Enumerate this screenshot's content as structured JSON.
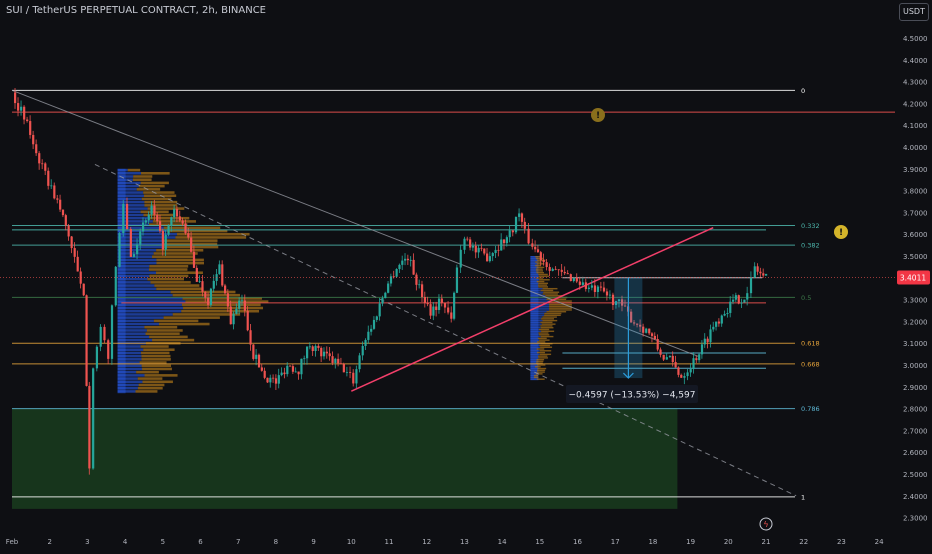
{
  "header": {
    "title": "SUI / TetherUS PERPETUAL CONTRACT, 2h, BINANCE",
    "currency": "USDT"
  },
  "last_price_label": "3.4011",
  "measure_label": "−0.4597 (−13.53%) −4,597",
  "colors": {
    "background": "#0e0f13",
    "up": "#26a69a",
    "down": "#ef5350",
    "trendline": "#f23f6a",
    "volume_profile": "#2962ff",
    "volume_profile_orange": "#d9921c",
    "green_zone": "#183a1e",
    "measure": "#2b9bd9",
    "fib_0": "#ffffff",
    "fib_0382": "#4db6ac",
    "fib_0618": "#e5a33b",
    "fib_0786": "#5fbad7"
  },
  "fib_levels": [
    {
      "label": "0",
      "value": 4.26
    },
    {
      "label": "0.332",
      "value": 3.64
    },
    {
      "label": "0.382",
      "value": 3.55
    },
    {
      "label": "0.5",
      "value": 3.31
    },
    {
      "label": "0.618",
      "value": 3.1
    },
    {
      "label": "0.668",
      "value": 3.005
    },
    {
      "label": "0.786",
      "value": 2.8
    },
    {
      "label": "1",
      "value": 2.395
    }
  ],
  "chart_data": {
    "type": "candlestick",
    "title": "SUI / TetherUS PERPETUAL CONTRACT, 2h, BINANCE",
    "ylim": [
      2.27,
      4.6
    ],
    "y_ticks": [
      "4.5000",
      "4.4000",
      "4.3000",
      "4.2000",
      "4.1000",
      "4.0000",
      "3.9000",
      "3.8000",
      "3.7000",
      "3.6000",
      "3.5000",
      "3.4000",
      "3.3000",
      "3.2000",
      "3.1000",
      "3.0000",
      "2.9000",
      "2.8000",
      "2.7000",
      "2.6000",
      "2.5000",
      "2.4000",
      "2.3000"
    ],
    "x_ticks": [
      "Feb",
      "2",
      "3",
      "4",
      "5",
      "6",
      "7",
      "8",
      "9",
      "10",
      "11",
      "12",
      "13",
      "14",
      "15",
      "16",
      "17",
      "18",
      "19",
      "20",
      "21",
      "22",
      "23",
      "24"
    ],
    "x_range_days": [
      1,
      24.4
    ],
    "price_path": [
      [
        1.0,
        4.25
      ],
      [
        1.4,
        4.1
      ],
      [
        1.8,
        3.9
      ],
      [
        2.2,
        3.75
      ],
      [
        2.5,
        3.6
      ],
      [
        2.9,
        3.3
      ],
      [
        3.05,
        2.55
      ],
      [
        3.15,
        3.0
      ],
      [
        3.35,
        3.15
      ],
      [
        3.55,
        3.05
      ],
      [
        3.75,
        3.45
      ],
      [
        3.95,
        3.75
      ],
      [
        4.15,
        3.5
      ],
      [
        4.4,
        3.6
      ],
      [
        4.7,
        3.72
      ],
      [
        5.0,
        3.55
      ],
      [
        5.3,
        3.7
      ],
      [
        5.6,
        3.62
      ],
      [
        5.9,
        3.4
      ],
      [
        6.2,
        3.3
      ],
      [
        6.5,
        3.45
      ],
      [
        6.8,
        3.2
      ],
      [
        7.1,
        3.3
      ],
      [
        7.4,
        3.05
      ],
      [
        7.7,
        2.95
      ],
      [
        8.0,
        2.92
      ],
      [
        8.3,
        3.0
      ],
      [
        8.6,
        2.98
      ],
      [
        8.9,
        3.1
      ],
      [
        9.2,
        3.05
      ],
      [
        9.5,
        3.02
      ],
      [
        9.8,
        2.98
      ],
      [
        10.05,
        2.93
      ],
      [
        10.3,
        3.1
      ],
      [
        10.6,
        3.2
      ],
      [
        10.9,
        3.35
      ],
      [
        11.2,
        3.45
      ],
      [
        11.5,
        3.5
      ],
      [
        11.8,
        3.35
      ],
      [
        12.1,
        3.25
      ],
      [
        12.4,
        3.3
      ],
      [
        12.65,
        3.2
      ],
      [
        12.8,
        3.45
      ],
      [
        13.0,
        3.6
      ],
      [
        13.3,
        3.52
      ],
      [
        13.6,
        3.5
      ],
      [
        13.9,
        3.55
      ],
      [
        14.2,
        3.6
      ],
      [
        14.45,
        3.7
      ],
      [
        14.6,
        3.6
      ],
      [
        14.8,
        3.55
      ],
      [
        15.1,
        3.48
      ],
      [
        15.5,
        3.42
      ],
      [
        15.9,
        3.4
      ],
      [
        16.3,
        3.35
      ],
      [
        16.7,
        3.33
      ],
      [
        17.1,
        3.28
      ],
      [
        17.5,
        3.2
      ],
      [
        17.9,
        3.15
      ],
      [
        18.2,
        3.05
      ],
      [
        18.45,
        3.02
      ],
      [
        18.75,
        2.95
      ],
      [
        19.0,
        3.0
      ],
      [
        19.3,
        3.08
      ],
      [
        19.6,
        3.18
      ],
      [
        19.9,
        3.25
      ],
      [
        20.2,
        3.3
      ],
      [
        20.5,
        3.32
      ],
      [
        20.7,
        3.45
      ],
      [
        20.85,
        3.42
      ],
      [
        21.0,
        3.4
      ]
    ],
    "annotations": [
      {
        "type": "trendline",
        "from": [
          1.0,
          4.26
        ],
        "to": [
          19.2,
          3.04
        ]
      },
      {
        "type": "trendline_dashed",
        "from": [
          3.2,
          3.92
        ],
        "to": [
          21.8,
          2.4
        ]
      },
      {
        "type": "trendline_red",
        "from": [
          10.0,
          2.88
        ],
        "to": [
          19.6,
          3.63
        ]
      },
      {
        "type": "hline_red",
        "value": 4.16,
        "from": 1.0
      },
      {
        "type": "hline_red",
        "value": 3.285,
        "from": 3.9,
        "to": 21.0
      },
      {
        "type": "hline_white",
        "value": 3.4,
        "from": 15.6,
        "to": 20.9
      },
      {
        "type": "hline_teal",
        "value": 3.62,
        "from": 1.0,
        "to": 21.0
      },
      {
        "type": "hline_blue",
        "value": 3.055,
        "from": 15.6,
        "to": 21.0
      },
      {
        "type": "hline_blue",
        "value": 2.985,
        "from": 15.6,
        "to": 21.0
      },
      {
        "type": "zone",
        "top": 2.8,
        "bottom": 2.34,
        "from": 1.0,
        "to": 18.65
      },
      {
        "type": "measure",
        "x": 17.35,
        "from_value": 3.4,
        "to_value": 2.94
      },
      {
        "type": "volume_profile",
        "start": 3.8,
        "ymin": 2.87,
        "ymax": 3.9,
        "width_days": 4.0
      },
      {
        "type": "volume_profile",
        "start": 14.75,
        "ymin": 2.93,
        "ymax": 3.5,
        "width_days": 1.1
      }
    ]
  }
}
